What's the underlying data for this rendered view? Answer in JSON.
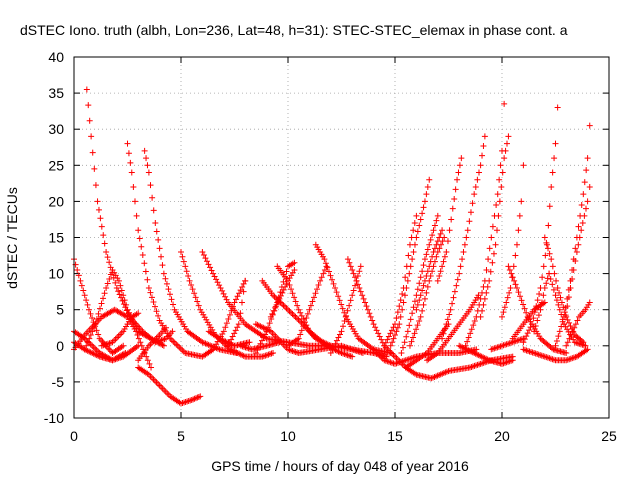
{
  "chart_data": {
    "type": "scatter",
    "title": "dSTEC Iono. truth (albh, Lon=236, Lat=48, h=31): STEC-STEC_elemax in phase cont. a",
    "xlabel": "GPS time / hours of day 048 of year 2016",
    "ylabel": "dSTEC  / TECUs",
    "xlim": [
      0,
      25
    ],
    "ylim": [
      -10,
      40
    ],
    "x_ticks": [
      "0",
      "5",
      "10",
      "15",
      "20",
      "25"
    ],
    "y_ticks": [
      "-10",
      "-5",
      "0",
      "5",
      "10",
      "15",
      "20",
      "25",
      "30",
      "35",
      "40"
    ],
    "grid": true,
    "marker": "+",
    "color": "#ff0000",
    "tracks": [
      [
        [
          0.0,
          12
        ],
        [
          0.3,
          9
        ],
        [
          0.7,
          5
        ],
        [
          1.2,
          1
        ],
        [
          1.8,
          -1
        ],
        [
          2.3,
          0
        ]
      ],
      [
        [
          0.0,
          2
        ],
        [
          0.5,
          1
        ],
        [
          1.2,
          -1
        ],
        [
          1.8,
          -2
        ],
        [
          2.3,
          -1.5
        ],
        [
          3.0,
          0
        ]
      ],
      [
        [
          0.0,
          0.5
        ],
        [
          0.5,
          -0.5
        ],
        [
          1.2,
          -1.5
        ],
        [
          1.8,
          -2
        ],
        [
          2.4,
          -1
        ]
      ],
      [
        [
          0.0,
          -0.5
        ],
        [
          0.5,
          1.5
        ],
        [
          1.3,
          4
        ],
        [
          1.9,
          5
        ],
        [
          2.5,
          4
        ],
        [
          2.9,
          2
        ],
        [
          3.3,
          -1
        ],
        [
          3.6,
          -3
        ]
      ],
      [
        [
          0.6,
          35.5
        ],
        [
          0.8,
          29
        ],
        [
          1.1,
          20
        ],
        [
          1.5,
          13
        ],
        [
          2.0,
          8
        ],
        [
          2.6,
          4
        ],
        [
          3.2,
          2
        ],
        [
          3.8,
          0.5
        ],
        [
          4.3,
          1
        ],
        [
          4.6,
          2
        ]
      ],
      [
        [
          0.5,
          -0.5
        ],
        [
          1.0,
          3
        ],
        [
          1.5,
          8
        ],
        [
          1.8,
          10.5
        ],
        [
          2.1,
          9
        ],
        [
          2.5,
          5
        ],
        [
          3.0,
          2
        ],
        [
          3.6,
          1
        ],
        [
          4.2,
          0
        ]
      ],
      [
        [
          2.5,
          28
        ],
        [
          2.7,
          24
        ],
        [
          3.0,
          16
        ],
        [
          3.5,
          8
        ],
        [
          4.0,
          3.5
        ],
        [
          4.5,
          1
        ],
        [
          5.2,
          -1
        ],
        [
          6.0,
          -1.5
        ],
        [
          6.5,
          -0.5
        ]
      ],
      [
        [
          1.3,
          0
        ],
        [
          1.8,
          0.5
        ],
        [
          2.3,
          2
        ],
        [
          2.7,
          4
        ],
        [
          3.0,
          4.5
        ]
      ],
      [
        [
          3.3,
          27
        ],
        [
          3.5,
          24
        ],
        [
          3.8,
          17
        ],
        [
          4.2,
          10
        ],
        [
          4.7,
          5
        ],
        [
          5.3,
          2
        ],
        [
          6.0,
          0.5
        ],
        [
          6.8,
          -0.5
        ],
        [
          7.6,
          -1
        ]
      ],
      [
        [
          3.0,
          -3
        ],
        [
          3.5,
          -4
        ],
        [
          4.0,
          -5.5
        ],
        [
          4.5,
          -7
        ],
        [
          5.0,
          -8
        ],
        [
          5.5,
          -7.5
        ],
        [
          5.9,
          -7
        ]
      ],
      [
        [
          3.0,
          -2
        ],
        [
          3.5,
          0
        ],
        [
          4.0,
          1.5
        ],
        [
          4.3,
          2.5
        ]
      ],
      [
        [
          5.0,
          13
        ],
        [
          5.4,
          9
        ],
        [
          5.9,
          5
        ],
        [
          6.6,
          1.5
        ],
        [
          7.3,
          -0.5
        ],
        [
          8.0,
          -1.5
        ],
        [
          8.8,
          -1.5
        ],
        [
          9.3,
          -1
        ]
      ],
      [
        [
          6.0,
          13
        ],
        [
          6.5,
          10
        ],
        [
          7.2,
          6
        ],
        [
          8.0,
          3
        ],
        [
          9.0,
          1
        ],
        [
          10.0,
          0.5
        ],
        [
          11.0,
          0
        ],
        [
          12.0,
          0
        ],
        [
          13.0,
          -0.5
        ],
        [
          14.0,
          -1
        ],
        [
          14.6,
          -1.5
        ]
      ],
      [
        [
          6.3,
          2
        ],
        [
          6.8,
          1
        ],
        [
          7.5,
          0
        ],
        [
          8.2,
          0.5
        ]
      ],
      [
        [
          6.5,
          -0.5
        ],
        [
          7.0,
          2
        ],
        [
          7.5,
          6
        ],
        [
          8.0,
          9
        ]
      ],
      [
        [
          7.8,
          0
        ],
        [
          8.3,
          -0.5
        ],
        [
          9.0,
          0
        ],
        [
          9.6,
          0.5
        ]
      ],
      [
        [
          7.2,
          0
        ],
        [
          7.7,
          3
        ],
        [
          8.0,
          9
        ]
      ],
      [
        [
          8.5,
          3
        ],
        [
          9.2,
          2
        ],
        [
          10.0,
          -0.5
        ],
        [
          10.5,
          -1
        ],
        [
          11.5,
          -0.5
        ],
        [
          12.5,
          0
        ],
        [
          13.5,
          -1
        ]
      ],
      [
        [
          8.5,
          -1
        ],
        [
          9.0,
          2
        ],
        [
          9.5,
          6
        ],
        [
          10.0,
          11
        ],
        [
          10.3,
          11.5
        ]
      ],
      [
        [
          9.2,
          4
        ],
        [
          9.6,
          6.5
        ],
        [
          10.0,
          9
        ],
        [
          10.3,
          10.5
        ]
      ],
      [
        [
          8.8,
          9
        ],
        [
          9.3,
          7
        ],
        [
          10.0,
          5
        ],
        [
          10.7,
          3
        ],
        [
          11.3,
          1
        ],
        [
          12.0,
          0
        ]
      ],
      [
        [
          9.5,
          11
        ],
        [
          10.0,
          9
        ],
        [
          10.5,
          5
        ],
        [
          11.0,
          2
        ],
        [
          11.8,
          0
        ],
        [
          12.5,
          -1
        ],
        [
          13.0,
          -1.5
        ]
      ],
      [
        [
          10.0,
          0
        ],
        [
          10.5,
          1
        ],
        [
          11.0,
          5
        ],
        [
          11.5,
          9
        ],
        [
          11.8,
          11
        ]
      ],
      [
        [
          11.3,
          14
        ],
        [
          11.7,
          12
        ],
        [
          12.2,
          8
        ],
        [
          12.7,
          4
        ],
        [
          13.3,
          1
        ],
        [
          14.0,
          -0.5
        ],
        [
          14.8,
          -1
        ]
      ],
      [
        [
          12.0,
          -1
        ],
        [
          12.5,
          2
        ],
        [
          13.0,
          7
        ],
        [
          13.4,
          11
        ]
      ],
      [
        [
          12.8,
          12
        ],
        [
          13.2,
          9
        ],
        [
          13.6,
          6
        ],
        [
          14.0,
          3
        ],
        [
          14.5,
          0
        ],
        [
          15.0,
          -1.5
        ],
        [
          15.5,
          -3
        ],
        [
          16.0,
          -4
        ],
        [
          16.7,
          -4.5
        ],
        [
          17.5,
          -3.5
        ],
        [
          18.5,
          -3
        ],
        [
          19.5,
          -2
        ],
        [
          20.5,
          -1.5
        ]
      ],
      [
        [
          14.0,
          -0.5
        ],
        [
          14.5,
          -2
        ],
        [
          15.0,
          -2.5
        ],
        [
          15.5,
          -2
        ],
        [
          16.0,
          -1.5
        ],
        [
          17.0,
          -1
        ],
        [
          18.0,
          -1
        ],
        [
          18.8,
          -0.5
        ]
      ],
      [
        [
          14.5,
          0
        ],
        [
          15.0,
          3
        ],
        [
          15.4,
          8
        ],
        [
          15.7,
          14
        ],
        [
          16.0,
          18
        ]
      ],
      [
        [
          14.8,
          0
        ],
        [
          15.2,
          3
        ],
        [
          15.6,
          9
        ],
        [
          16.0,
          15
        ],
        [
          16.4,
          20
        ],
        [
          16.6,
          23
        ]
      ],
      [
        [
          15.3,
          -1
        ],
        [
          15.6,
          2
        ],
        [
          16.0,
          7
        ],
        [
          16.4,
          12
        ],
        [
          16.8,
          16
        ],
        [
          17.0,
          18
        ]
      ],
      [
        [
          15.7,
          0
        ],
        [
          16.2,
          4
        ],
        [
          16.6,
          9
        ],
        [
          17.0,
          13
        ],
        [
          17.3,
          15
        ]
      ],
      [
        [
          16.0,
          5
        ],
        [
          16.4,
          9
        ],
        [
          16.8,
          13
        ],
        [
          17.2,
          16
        ]
      ],
      [
        [
          15.5,
          -3
        ],
        [
          16.0,
          -2
        ],
        [
          16.5,
          -1
        ],
        [
          17.0,
          1
        ],
        [
          17.5,
          3
        ]
      ],
      [
        [
          17.0,
          9
        ],
        [
          17.4,
          13
        ],
        [
          17.7,
          19
        ],
        [
          17.9,
          23
        ],
        [
          18.1,
          26
        ]
      ],
      [
        [
          17.2,
          1
        ],
        [
          17.6,
          5
        ],
        [
          18.0,
          10
        ],
        [
          18.4,
          16
        ],
        [
          18.7,
          21
        ],
        [
          19.0,
          25
        ],
        [
          19.2,
          29
        ]
      ],
      [
        [
          16.5,
          -2
        ],
        [
          17.0,
          -1
        ],
        [
          17.5,
          1
        ],
        [
          18.0,
          3
        ],
        [
          18.5,
          5
        ],
        [
          18.9,
          7
        ]
      ],
      [
        [
          18.3,
          0
        ],
        [
          18.8,
          4
        ],
        [
          19.2,
          9
        ],
        [
          19.5,
          15
        ],
        [
          19.8,
          21
        ],
        [
          20.0,
          27
        ],
        [
          20.1,
          33.5
        ]
      ],
      [
        [
          19.0,
          4
        ],
        [
          19.4,
          9
        ],
        [
          19.7,
          14
        ],
        [
          19.9,
          20
        ],
        [
          20.1,
          26
        ],
        [
          20.3,
          29
        ]
      ],
      [
        [
          18.0,
          0
        ],
        [
          18.7,
          -1
        ],
        [
          19.4,
          -2
        ],
        [
          20.0,
          -2.5
        ],
        [
          20.5,
          -2
        ]
      ],
      [
        [
          19.5,
          -0.5
        ],
        [
          20.0,
          0
        ],
        [
          20.5,
          0.5
        ],
        [
          21.0,
          1
        ]
      ],
      [
        [
          20.0,
          4
        ],
        [
          20.4,
          8
        ],
        [
          20.7,
          14
        ],
        [
          20.9,
          20
        ],
        [
          21.0,
          25
        ]
      ],
      [
        [
          20.3,
          11
        ],
        [
          20.7,
          8
        ],
        [
          21.2,
          4
        ],
        [
          21.8,
          1
        ],
        [
          22.4,
          -0.5
        ],
        [
          23.0,
          -1
        ]
      ],
      [
        [
          21.0,
          0.5
        ],
        [
          21.4,
          3
        ],
        [
          21.8,
          8
        ],
        [
          22.1,
          14
        ],
        [
          22.3,
          22
        ],
        [
          22.5,
          28
        ],
        [
          22.6,
          33
        ]
      ],
      [
        [
          21.5,
          2
        ],
        [
          21.8,
          5
        ],
        [
          22.0,
          8
        ],
        [
          22.2,
          10
        ]
      ],
      [
        [
          22.0,
          15
        ],
        [
          22.3,
          12
        ],
        [
          22.6,
          8
        ],
        [
          23.0,
          4
        ],
        [
          23.4,
          1.5
        ],
        [
          23.8,
          0.5
        ]
      ],
      [
        [
          22.2,
          10
        ],
        [
          22.5,
          7
        ],
        [
          22.9,
          3
        ],
        [
          23.4,
          0.5
        ],
        [
          23.9,
          0
        ]
      ],
      [
        [
          21.0,
          -0.5
        ],
        [
          21.5,
          -1
        ],
        [
          22.0,
          -1.5
        ],
        [
          22.5,
          -2
        ],
        [
          23.0,
          -2
        ],
        [
          23.5,
          -1.5
        ],
        [
          24.0,
          -0.5
        ]
      ],
      [
        [
          22.5,
          0
        ],
        [
          22.9,
          4
        ],
        [
          23.2,
          9
        ],
        [
          23.5,
          15
        ],
        [
          23.8,
          21
        ],
        [
          24.0,
          26
        ],
        [
          24.1,
          30.5
        ]
      ],
      [
        [
          22.9,
          3
        ],
        [
          23.2,
          8
        ],
        [
          23.5,
          13
        ],
        [
          23.7,
          16
        ],
        [
          24.0,
          20
        ],
        [
          24.1,
          22
        ]
      ],
      [
        [
          23.0,
          0
        ],
        [
          23.3,
          2
        ],
        [
          23.6,
          4
        ],
        [
          23.9,
          5
        ],
        [
          24.1,
          6
        ]
      ],
      [
        [
          20.5,
          1
        ],
        [
          21.0,
          3
        ],
        [
          21.5,
          5
        ],
        [
          22.0,
          6
        ]
      ]
    ]
  }
}
